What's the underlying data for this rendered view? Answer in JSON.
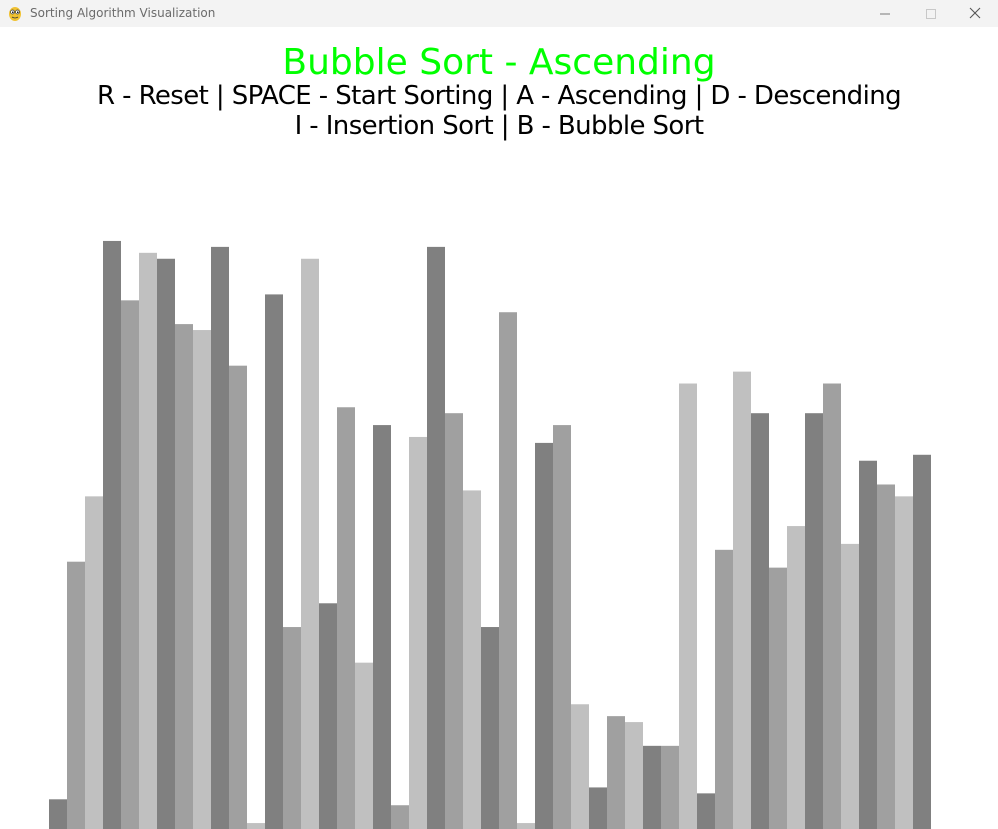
{
  "window": {
    "title": "Sorting Algorithm Visualization"
  },
  "icons": {
    "app": "pygame-snake-icon",
    "minimize": "minimize-icon",
    "maximize": "maximize-icon",
    "close": "close-icon"
  },
  "header": {
    "title": "Bubble Sort - Ascending",
    "controls_line1": "R - Reset | SPACE - Start Sorting | A - Ascending | D - Descending",
    "controls_line2": "I - Insertion Sort | B - Bubble Sort"
  },
  "colors": {
    "title": "#00ff00",
    "controls": "#000000",
    "bar_shades": [
      "#808080",
      "#a0a0a0",
      "#c0c0c0"
    ],
    "background": "#ffffff"
  },
  "chart_data": {
    "type": "bar",
    "title": "",
    "xlabel": "",
    "ylabel": "",
    "grid": false,
    "shade_cycle": [
      "#808080",
      "#a0a0a0",
      "#c0c0c0"
    ],
    "values": [
      5,
      45,
      56,
      99,
      89,
      97,
      96,
      85,
      84,
      98,
      78,
      1,
      90,
      34,
      96,
      38,
      71,
      28,
      68,
      4,
      66,
      98,
      70,
      57,
      34,
      87,
      1,
      65,
      68,
      21,
      7,
      19,
      18,
      14,
      14,
      75,
      6,
      47,
      77,
      70,
      44,
      51,
      70,
      75,
      48,
      62,
      58,
      56,
      63
    ],
    "ylim": [
      0,
      100
    ]
  }
}
